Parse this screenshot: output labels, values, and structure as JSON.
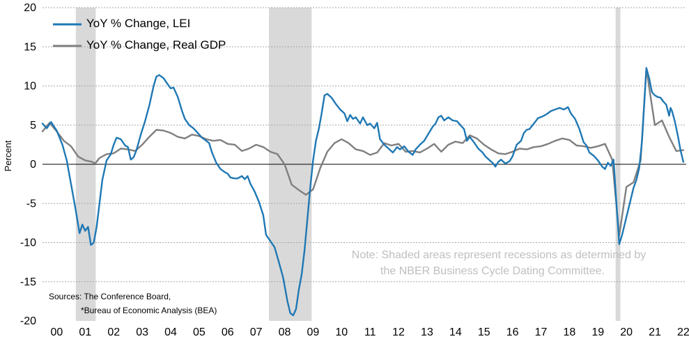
{
  "chart_data": {
    "type": "line",
    "ylabel": "Percent",
    "ylim": [
      -20,
      20
    ],
    "xlim": [
      2000.0,
      2022.6
    ],
    "yticks": [
      "20",
      "15",
      "10",
      "5",
      "0",
      "-5",
      "-10",
      "-15",
      "-20"
    ],
    "xticks": [
      "00",
      "01",
      "02",
      "03",
      "04",
      "05",
      "06",
      "07",
      "08",
      "09",
      "10",
      "11",
      "12",
      "13",
      "14",
      "15",
      "16",
      "17",
      "18",
      "19",
      "20",
      "21",
      "22"
    ],
    "grid": "horizontal",
    "legend": "top-left",
    "recessions": [
      [
        2001.17,
        2001.87
      ],
      [
        2007.95,
        2009.45
      ],
      [
        2020.12,
        2020.29
      ]
    ],
    "series": [
      {
        "name": "YoY % Change, LEI",
        "color": "#1f78b4",
        "points": [
          [
            2000.0,
            5.2
          ],
          [
            2000.15,
            4.6
          ],
          [
            2000.3,
            5.4
          ],
          [
            2000.5,
            4.3
          ],
          [
            2000.7,
            2.5
          ],
          [
            2000.85,
            0.5
          ],
          [
            2001.0,
            -2.5
          ],
          [
            2001.15,
            -5.5
          ],
          [
            2001.3,
            -8.8
          ],
          [
            2001.4,
            -7.7
          ],
          [
            2001.5,
            -8.5
          ],
          [
            2001.6,
            -8.0
          ],
          [
            2001.7,
            -10.3
          ],
          [
            2001.8,
            -10.0
          ],
          [
            2001.9,
            -8.0
          ],
          [
            2002.0,
            -5.0
          ],
          [
            2002.1,
            -2.0
          ],
          [
            2002.25,
            0.5
          ],
          [
            2002.4,
            1.3
          ],
          [
            2002.5,
            2.5
          ],
          [
            2002.6,
            3.4
          ],
          [
            2002.75,
            3.2
          ],
          [
            2002.9,
            2.4
          ],
          [
            2003.0,
            2.2
          ],
          [
            2003.1,
            0.6
          ],
          [
            2003.2,
            0.9
          ],
          [
            2003.3,
            1.8
          ],
          [
            2003.45,
            3.8
          ],
          [
            2003.6,
            5.5
          ],
          [
            2003.75,
            7.5
          ],
          [
            2003.9,
            10.0
          ],
          [
            2004.0,
            11.2
          ],
          [
            2004.1,
            11.4
          ],
          [
            2004.25,
            11.0
          ],
          [
            2004.4,
            10.2
          ],
          [
            2004.5,
            9.7
          ],
          [
            2004.6,
            9.8
          ],
          [
            2004.75,
            8.6
          ],
          [
            2004.9,
            6.8
          ],
          [
            2005.0,
            5.8
          ],
          [
            2005.15,
            5.0
          ],
          [
            2005.3,
            4.6
          ],
          [
            2005.4,
            4.2
          ],
          [
            2005.5,
            3.8
          ],
          [
            2005.6,
            3.4
          ],
          [
            2005.75,
            3.0
          ],
          [
            2005.85,
            2.7
          ],
          [
            2005.95,
            1.5
          ],
          [
            2006.1,
            0.2
          ],
          [
            2006.25,
            -0.6
          ],
          [
            2006.4,
            -1.0
          ],
          [
            2006.5,
            -1.2
          ],
          [
            2006.6,
            -1.7
          ],
          [
            2006.75,
            -1.8
          ],
          [
            2006.85,
            -1.8
          ],
          [
            2007.0,
            -1.5
          ],
          [
            2007.1,
            -1.9
          ],
          [
            2007.2,
            -1.5
          ],
          [
            2007.3,
            -2.5
          ],
          [
            2007.45,
            -3.5
          ],
          [
            2007.6,
            -4.8
          ],
          [
            2007.75,
            -6.5
          ],
          [
            2007.85,
            -9.0
          ],
          [
            2008.0,
            -9.8
          ],
          [
            2008.15,
            -10.6
          ],
          [
            2008.3,
            -12.5
          ],
          [
            2008.45,
            -14.5
          ],
          [
            2008.6,
            -17.5
          ],
          [
            2008.7,
            -19.0
          ],
          [
            2008.8,
            -19.3
          ],
          [
            2008.9,
            -18.5
          ],
          [
            2009.0,
            -16.0
          ],
          [
            2009.1,
            -14.0
          ],
          [
            2009.2,
            -11.0
          ],
          [
            2009.3,
            -7.0
          ],
          [
            2009.4,
            -3.0
          ],
          [
            2009.5,
            0.5
          ],
          [
            2009.6,
            3.0
          ],
          [
            2009.7,
            4.5
          ],
          [
            2009.8,
            6.5
          ],
          [
            2009.9,
            8.8
          ],
          [
            2010.0,
            9.0
          ],
          [
            2010.15,
            8.5
          ],
          [
            2010.3,
            7.7
          ],
          [
            2010.45,
            7.0
          ],
          [
            2010.6,
            6.5
          ],
          [
            2010.7,
            5.5
          ],
          [
            2010.8,
            6.3
          ],
          [
            2010.9,
            5.8
          ],
          [
            2011.0,
            6.0
          ],
          [
            2011.15,
            5.2
          ],
          [
            2011.25,
            6.0
          ],
          [
            2011.4,
            5.0
          ],
          [
            2011.5,
            5.2
          ],
          [
            2011.65,
            4.6
          ],
          [
            2011.75,
            5.3
          ],
          [
            2011.85,
            3.2
          ],
          [
            2012.0,
            2.5
          ],
          [
            2012.15,
            2.0
          ],
          [
            2012.3,
            1.5
          ],
          [
            2012.45,
            2.2
          ],
          [
            2012.55,
            1.9
          ],
          [
            2012.7,
            2.3
          ],
          [
            2012.85,
            1.6
          ],
          [
            2013.0,
            1.2
          ],
          [
            2013.1,
            1.9
          ],
          [
            2013.25,
            2.5
          ],
          [
            2013.4,
            3.0
          ],
          [
            2013.55,
            3.9
          ],
          [
            2013.7,
            4.8
          ],
          [
            2013.8,
            5.2
          ],
          [
            2013.9,
            6.0
          ],
          [
            2014.0,
            6.2
          ],
          [
            2014.1,
            5.6
          ],
          [
            2014.25,
            6.0
          ],
          [
            2014.4,
            5.6
          ],
          [
            2014.55,
            5.5
          ],
          [
            2014.7,
            4.9
          ],
          [
            2014.8,
            4.5
          ],
          [
            2014.9,
            3.0
          ],
          [
            2015.0,
            3.5
          ],
          [
            2015.15,
            2.8
          ],
          [
            2015.3,
            2.0
          ],
          [
            2015.45,
            1.5
          ],
          [
            2015.55,
            1.0
          ],
          [
            2015.7,
            0.5
          ],
          [
            2015.8,
            0.2
          ],
          [
            2015.9,
            -0.3
          ],
          [
            2016.0,
            0.3
          ],
          [
            2016.1,
            0.6
          ],
          [
            2016.25,
            0.1
          ],
          [
            2016.4,
            0.4
          ],
          [
            2016.5,
            1.0
          ],
          [
            2016.65,
            2.5
          ],
          [
            2016.8,
            3.0
          ],
          [
            2016.9,
            4.0
          ],
          [
            2017.0,
            4.4
          ],
          [
            2017.1,
            4.5
          ],
          [
            2017.25,
            5.2
          ],
          [
            2017.4,
            5.9
          ],
          [
            2017.55,
            6.1
          ],
          [
            2017.7,
            6.4
          ],
          [
            2017.85,
            6.8
          ],
          [
            2018.0,
            7.0
          ],
          [
            2018.15,
            7.2
          ],
          [
            2018.3,
            7.0
          ],
          [
            2018.45,
            7.3
          ],
          [
            2018.55,
            6.5
          ],
          [
            2018.7,
            5.8
          ],
          [
            2018.85,
            4.5
          ],
          [
            2019.0,
            2.8
          ],
          [
            2019.1,
            2.4
          ],
          [
            2019.2,
            1.5
          ],
          [
            2019.35,
            1.1
          ],
          [
            2019.5,
            0.5
          ],
          [
            2019.65,
            -0.3
          ],
          [
            2019.75,
            -0.6
          ],
          [
            2019.85,
            0.2
          ],
          [
            2019.95,
            -0.2
          ],
          [
            2020.05,
            0.6
          ],
          [
            2020.15,
            -5.0
          ],
          [
            2020.25,
            -10.2
          ],
          [
            2020.35,
            -9.0
          ],
          [
            2020.45,
            -7.5
          ],
          [
            2020.55,
            -6.0
          ],
          [
            2020.65,
            -4.5
          ],
          [
            2020.75,
            -3.0
          ],
          [
            2020.85,
            -2.0
          ],
          [
            2020.95,
            -0.5
          ],
          [
            2021.05,
            3.0
          ],
          [
            2021.2,
            12.3
          ],
          [
            2021.3,
            11.0
          ],
          [
            2021.4,
            9.2
          ],
          [
            2021.5,
            8.8
          ],
          [
            2021.6,
            8.6
          ],
          [
            2021.7,
            8.5
          ],
          [
            2021.8,
            8.0
          ],
          [
            2021.9,
            7.6
          ],
          [
            2022.0,
            6.2
          ],
          [
            2022.05,
            7.2
          ],
          [
            2022.1,
            6.8
          ],
          [
            2022.2,
            5.5
          ],
          [
            2022.3,
            3.8
          ],
          [
            2022.4,
            1.8
          ],
          [
            2022.5,
            0.3
          ]
        ]
      },
      {
        "name": "YoY % Change, Real GDP",
        "color": "#7f7f7f",
        "points": [
          [
            2000.0,
            4.2
          ],
          [
            2000.25,
            5.3
          ],
          [
            2000.5,
            4.2
          ],
          [
            2000.75,
            3.0
          ],
          [
            2001.0,
            2.3
          ],
          [
            2001.25,
            1.0
          ],
          [
            2001.5,
            0.5
          ],
          [
            2001.75,
            0.3
          ],
          [
            2001.85,
            0.1
          ],
          [
            2002.0,
            0.8
          ],
          [
            2002.25,
            1.3
          ],
          [
            2002.5,
            1.4
          ],
          [
            2002.75,
            2.0
          ],
          [
            2003.0,
            1.9
          ],
          [
            2003.25,
            1.7
          ],
          [
            2003.5,
            2.5
          ],
          [
            2003.75,
            3.5
          ],
          [
            2004.0,
            4.4
          ],
          [
            2004.25,
            4.3
          ],
          [
            2004.5,
            4.0
          ],
          [
            2004.75,
            3.5
          ],
          [
            2005.0,
            3.3
          ],
          [
            2005.25,
            3.8
          ],
          [
            2005.5,
            3.6
          ],
          [
            2005.75,
            3.2
          ],
          [
            2006.0,
            3.0
          ],
          [
            2006.25,
            3.1
          ],
          [
            2006.5,
            2.6
          ],
          [
            2006.75,
            2.5
          ],
          [
            2007.0,
            1.7
          ],
          [
            2007.25,
            2.0
          ],
          [
            2007.5,
            2.5
          ],
          [
            2007.75,
            2.2
          ],
          [
            2008.0,
            1.6
          ],
          [
            2008.25,
            1.3
          ],
          [
            2008.5,
            0.0
          ],
          [
            2008.75,
            -2.6
          ],
          [
            2009.0,
            -3.3
          ],
          [
            2009.25,
            -3.9
          ],
          [
            2009.5,
            -3.2
          ],
          [
            2009.75,
            -0.5
          ],
          [
            2010.0,
            1.6
          ],
          [
            2010.25,
            2.7
          ],
          [
            2010.5,
            3.2
          ],
          [
            2010.75,
            2.7
          ],
          [
            2011.0,
            1.9
          ],
          [
            2011.25,
            1.7
          ],
          [
            2011.5,
            1.2
          ],
          [
            2011.75,
            1.5
          ],
          [
            2012.0,
            2.7
          ],
          [
            2012.25,
            2.4
          ],
          [
            2012.5,
            2.6
          ],
          [
            2012.75,
            1.6
          ],
          [
            2013.0,
            1.7
          ],
          [
            2013.25,
            1.5
          ],
          [
            2013.5,
            2.0
          ],
          [
            2013.75,
            2.6
          ],
          [
            2014.0,
            1.6
          ],
          [
            2014.25,
            2.5
          ],
          [
            2014.5,
            2.9
          ],
          [
            2014.75,
            2.7
          ],
          [
            2015.0,
            3.7
          ],
          [
            2015.25,
            3.3
          ],
          [
            2015.5,
            2.5
          ],
          [
            2015.75,
            1.9
          ],
          [
            2016.0,
            1.4
          ],
          [
            2016.25,
            1.3
          ],
          [
            2016.5,
            1.6
          ],
          [
            2016.75,
            2.0
          ],
          [
            2017.0,
            1.9
          ],
          [
            2017.25,
            2.2
          ],
          [
            2017.5,
            2.3
          ],
          [
            2017.75,
            2.6
          ],
          [
            2018.0,
            3.0
          ],
          [
            2018.25,
            3.3
          ],
          [
            2018.5,
            3.1
          ],
          [
            2018.75,
            2.4
          ],
          [
            2019.0,
            2.3
          ],
          [
            2019.25,
            2.1
          ],
          [
            2019.5,
            2.3
          ],
          [
            2019.75,
            2.6
          ],
          [
            2020.0,
            0.6
          ],
          [
            2020.25,
            -9.1
          ],
          [
            2020.5,
            -2.9
          ],
          [
            2020.75,
            -2.3
          ],
          [
            2021.0,
            0.5
          ],
          [
            2021.2,
            12.2
          ],
          [
            2021.5,
            5.0
          ],
          [
            2021.75,
            5.6
          ],
          [
            2022.0,
            3.5
          ],
          [
            2022.25,
            1.7
          ],
          [
            2022.5,
            1.8
          ]
        ]
      }
    ],
    "annotations": [
      "Note: Shaded areas represent recessions as determined by",
      "the NBER Business Cycle Dating Committee."
    ],
    "sources": [
      "Sources: The Conference Board,",
      "*Bureau of Economic Analysis (BEA)"
    ]
  }
}
